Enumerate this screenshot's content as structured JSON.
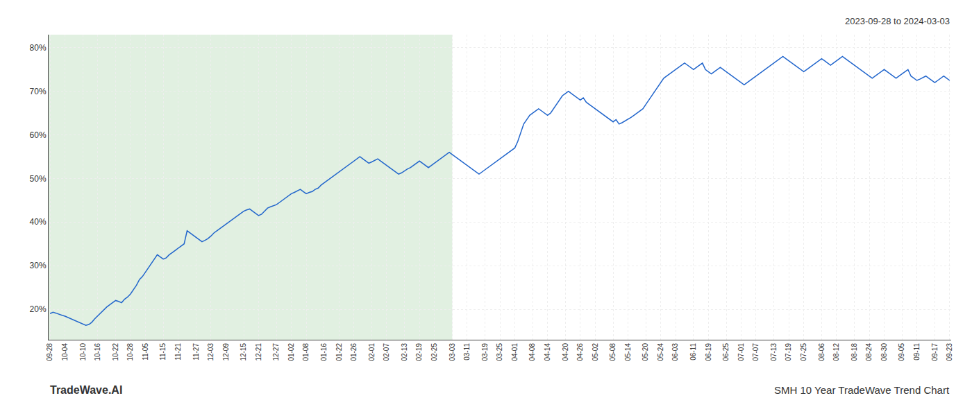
{
  "chart_data": {
    "type": "line",
    "title": "SMH 10 Year TradeWave Trend Chart",
    "subtitle": "2023-09-28 to 2024-03-03",
    "annotations": [
      "TradeWave.AI"
    ],
    "color": "#2266cc",
    "grid": true,
    "ylim": [
      13,
      83
    ],
    "yticks": [
      {
        "value": 20,
        "label": "20%"
      },
      {
        "value": 30,
        "label": "30%"
      },
      {
        "value": 40,
        "label": "40%"
      },
      {
        "value": 50,
        "label": "50%"
      },
      {
        "value": 60,
        "label": "60%"
      },
      {
        "value": 70,
        "label": "70%"
      },
      {
        "value": 80,
        "label": "80%"
      }
    ],
    "shaded_region": {
      "start": "09-28",
      "end": "03-03",
      "color": "#d4ead4"
    },
    "categories": [
      "09-28",
      null,
      null,
      null,
      null,
      "10-04",
      null,
      null,
      null,
      null,
      null,
      "10-10",
      null,
      null,
      null,
      null,
      "10-16",
      null,
      null,
      null,
      null,
      null,
      "10-22",
      null,
      null,
      null,
      null,
      "10-28",
      null,
      null,
      null,
      null,
      "11-05",
      null,
      null,
      null,
      null,
      null,
      "11-15",
      null,
      null,
      null,
      null,
      "11-21",
      null,
      null,
      null,
      null,
      null,
      "11-27",
      null,
      null,
      null,
      null,
      "12-03",
      null,
      null,
      null,
      null,
      "12-09",
      null,
      null,
      null,
      null,
      null,
      "12-15",
      null,
      null,
      null,
      null,
      "12-21",
      null,
      null,
      null,
      null,
      null,
      "12-27",
      null,
      null,
      null,
      null,
      "01-02",
      null,
      null,
      null,
      null,
      "01-08",
      null,
      null,
      null,
      null,
      null,
      "01-16",
      null,
      null,
      null,
      null,
      "01-22",
      null,
      null,
      null,
      null,
      "01-26",
      null,
      null,
      null,
      null,
      null,
      "02-01",
      null,
      null,
      null,
      null,
      "02-07",
      null,
      null,
      null,
      null,
      null,
      "02-13",
      null,
      null,
      null,
      null,
      "02-19",
      null,
      null,
      null,
      null,
      "02-25",
      null,
      null,
      null,
      null,
      null,
      "03-03",
      null,
      null,
      null,
      null,
      "03-11",
      null,
      null,
      null,
      null,
      null,
      "03-19",
      null,
      null,
      null,
      null,
      "03-25",
      null,
      null,
      null,
      null,
      "04-01",
      null,
      null,
      null,
      null,
      null,
      "04-08",
      null,
      null,
      null,
      null,
      "04-14",
      null,
      null,
      null,
      null,
      null,
      "04-20",
      null,
      null,
      null,
      null,
      "04-26",
      null,
      null,
      null,
      null,
      "05-02",
      null,
      null,
      null,
      null,
      null,
      "05-08",
      null,
      null,
      null,
      null,
      "05-14",
      null,
      null,
      null,
      null,
      null,
      "05-20",
      null,
      null,
      null,
      null,
      "05-24",
      null,
      null,
      null,
      null,
      "06-03",
      null,
      null,
      null,
      null,
      null,
      "06-11",
      null,
      null,
      null,
      null,
      "06-19",
      null,
      null,
      null,
      null,
      null,
      "06-25",
      null,
      null,
      null,
      null,
      "07-01",
      null,
      null,
      null,
      null,
      "07-07",
      null,
      null,
      null,
      null,
      null,
      "07-13",
      null,
      null,
      null,
      null,
      "07-19",
      null,
      null,
      null,
      null,
      "07-25",
      null,
      null,
      null,
      null,
      null,
      "08-06",
      null,
      null,
      null,
      null,
      "08-12",
      null,
      null,
      null,
      null,
      null,
      "08-18",
      null,
      null,
      null,
      null,
      "08-24",
      null,
      null,
      null,
      null,
      "08-30",
      null,
      null,
      null,
      null,
      null,
      "09-05",
      null,
      null,
      null,
      null,
      "09-11",
      null,
      null,
      null,
      null,
      null,
      "09-17",
      null,
      null,
      null,
      null,
      "09-23"
    ],
    "values": [
      19.0,
      19.3,
      19.1,
      18.8,
      18.6,
      18.4,
      18.1,
      17.8,
      17.5,
      17.2,
      16.8,
      16.5,
      16.3,
      16.5,
      17.0,
      17.8,
      18.5,
      19.2,
      19.8,
      20.5,
      21.0,
      21.5,
      22.0,
      21.8,
      21.5,
      22.3,
      22.8,
      23.5,
      24.5,
      25.5,
      26.8,
      27.5,
      28.5,
      29.5,
      30.5,
      31.5,
      32.5,
      32.0,
      31.5,
      31.8,
      32.5,
      33.0,
      33.5,
      34.0,
      34.5,
      35.0,
      38.0,
      37.5,
      37.0,
      36.5,
      36.0,
      35.5,
      35.8,
      36.2,
      36.8,
      37.5,
      38.0,
      38.5,
      39.0,
      39.5,
      40.0,
      40.5,
      41.0,
      41.5,
      42.0,
      42.5,
      42.8,
      43.0,
      42.5,
      42.0,
      41.5,
      41.8,
      42.5,
      43.2,
      43.5,
      43.8,
      44.0,
      44.5,
      45.0,
      45.5,
      46.0,
      46.5,
      46.8,
      47.2,
      47.5,
      47.0,
      46.5,
      46.8,
      47.0,
      47.5,
      47.8,
      48.5,
      49.0,
      49.5,
      50.0,
      50.5,
      51.0,
      51.5,
      52.0,
      52.5,
      53.0,
      53.5,
      54.0,
      54.5,
      55.0,
      54.5,
      54.0,
      53.5,
      53.8,
      54.2,
      54.5,
      54.0,
      53.5,
      53.0,
      52.5,
      52.0,
      51.5,
      51.0,
      51.3,
      51.8,
      52.2,
      52.5,
      53.0,
      53.5,
      54.0,
      53.5,
      53.0,
      52.5,
      53.0,
      53.5,
      54.0,
      54.5,
      55.0,
      55.5,
      56.0,
      55.5,
      55.0,
      54.5,
      54.0,
      53.5,
      53.0,
      52.5,
      52.0,
      51.5,
      51.0,
      51.5,
      52.0,
      52.5,
      53.0,
      53.5,
      54.0,
      54.5,
      55.0,
      55.5,
      56.0,
      56.5,
      57.0,
      58.5,
      60.5,
      62.5,
      63.5,
      64.5,
      65.0,
      65.5,
      66.0,
      65.5,
      65.0,
      64.5,
      65.0,
      66.0,
      67.0,
      68.0,
      69.0,
      69.5,
      70.0,
      69.5,
      69.0,
      68.5,
      68.0,
      68.5,
      67.5,
      67.0,
      66.5,
      66.0,
      65.5,
      65.0,
      64.5,
      64.0,
      63.5,
      63.0,
      63.5,
      62.5,
      62.8,
      63.2,
      63.5,
      64.0,
      64.5,
      65.0,
      65.5,
      66.0,
      67.0,
      68.0,
      69.0,
      70.0,
      71.0,
      72.0,
      73.0,
      73.5,
      74.0,
      74.5,
      75.0,
      75.5,
      76.0,
      76.5,
      76.0,
      75.5,
      75.0,
      75.5,
      76.0,
      76.5,
      75.0,
      74.5,
      74.0,
      74.5,
      75.0,
      75.5,
      75.0,
      74.5,
      74.0,
      73.5,
      73.0,
      72.5,
      72.0,
      71.5,
      72.0,
      72.5,
      73.0,
      73.5,
      74.0,
      74.5,
      75.0,
      75.5,
      76.0,
      76.5,
      77.0,
      77.5,
      78.0,
      77.5,
      77.0,
      76.5,
      76.0,
      75.5,
      75.0,
      74.5,
      75.0,
      75.5,
      76.0,
      76.5,
      77.0,
      77.5,
      77.0,
      76.5,
      76.0,
      76.5,
      77.0,
      77.5,
      78.0,
      77.5,
      77.0,
      76.5,
      76.0,
      75.5,
      75.0,
      74.5,
      74.0,
      73.5,
      73.0,
      73.5,
      74.0,
      74.5,
      75.0,
      74.5,
      74.0,
      73.5,
      73.0,
      73.5,
      74.0,
      74.5,
      75.0,
      73.5,
      73.0,
      72.5,
      72.8,
      73.2,
      73.5,
      73.0,
      72.5,
      72.0,
      72.5,
      73.0,
      73.5,
      73.0,
      72.5
    ]
  }
}
